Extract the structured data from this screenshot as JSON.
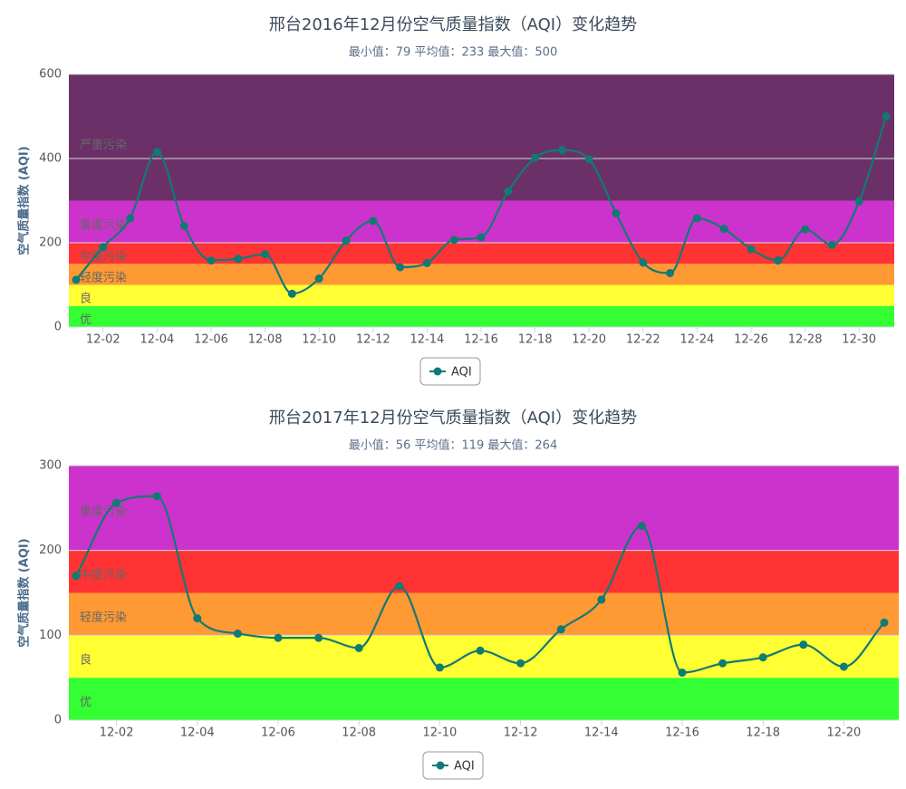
{
  "chart_data": [
    {
      "type": "line",
      "title": "邢台2016年12月份空气质量指数（AQI）变化趋势",
      "subtitle": "最小值：79 平均值：233 最大值：500",
      "ylabel": "空气质量指数 (AQI)",
      "xlabel": "",
      "ylim": [
        0,
        600
      ],
      "yticks": [
        "0",
        "200",
        "400",
        "600"
      ],
      "xtick_labels": [
        "12-02",
        "12-04",
        "12-06",
        "12-08",
        "12-10",
        "12-12",
        "12-14",
        "12-16",
        "12-18",
        "12-20",
        "12-22",
        "12-24",
        "12-26",
        "12-28",
        "12-30"
      ],
      "legend": {
        "label": "AQI",
        "position": "bottom-center"
      },
      "grid": true,
      "bands": [
        {
          "label": "优",
          "from": 0,
          "to": 50,
          "color": "#33ff33"
        },
        {
          "label": "良",
          "from": 50,
          "to": 100,
          "color": "#ffff33"
        },
        {
          "label": "轻度污染",
          "from": 100,
          "to": 150,
          "color": "#ff9933"
        },
        {
          "label": "中度污染",
          "from": 150,
          "to": 200,
          "color": "#ff3333"
        },
        {
          "label": "重度污染",
          "from": 200,
          "to": 300,
          "color": "#cc33cc"
        },
        {
          "label": "严重污染",
          "from": 300,
          "to": 600,
          "color": "#6b3068"
        }
      ],
      "series": [
        {
          "name": "AQI",
          "color": "#0f7b74",
          "x": [
            "12-01",
            "12-02",
            "12-03",
            "12-04",
            "12-05",
            "12-06",
            "12-07",
            "12-08",
            "12-09",
            "12-10",
            "12-11",
            "12-12",
            "12-13",
            "12-14",
            "12-15",
            "12-16",
            "12-17",
            "12-18",
            "12-19",
            "12-20",
            "12-21",
            "12-22",
            "12-23",
            "12-24",
            "12-25",
            "12-26",
            "12-27",
            "12-28",
            "12-29",
            "12-30",
            "12-31"
          ],
          "values": [
            112,
            190,
            258,
            415,
            240,
            158,
            162,
            173,
            79,
            115,
            205,
            252,
            142,
            152,
            207,
            213,
            322,
            402,
            420,
            398,
            270,
            153,
            128,
            258,
            233,
            185,
            158,
            232,
            195,
            298,
            500
          ]
        }
      ]
    },
    {
      "type": "line",
      "title": "邢台2017年12月份空气质量指数（AQI）变化趋势",
      "subtitle": "最小值：56 平均值：119 最大值：264",
      "ylabel": "空气质量指数 (AQI)",
      "xlabel": "",
      "ylim": [
        0,
        300
      ],
      "yticks": [
        "0",
        "100",
        "200",
        "300"
      ],
      "xtick_labels": [
        "12-02",
        "12-04",
        "12-06",
        "12-08",
        "12-10",
        "12-12",
        "12-14",
        "12-16",
        "12-18",
        "12-20"
      ],
      "legend": {
        "label": "AQI",
        "position": "bottom-center"
      },
      "grid": true,
      "bands": [
        {
          "label": "优",
          "from": 0,
          "to": 50,
          "color": "#33ff33"
        },
        {
          "label": "良",
          "from": 50,
          "to": 100,
          "color": "#ffff33"
        },
        {
          "label": "轻度污染",
          "from": 100,
          "to": 150,
          "color": "#ff9933"
        },
        {
          "label": "中度污染",
          "from": 150,
          "to": 200,
          "color": "#ff3333"
        },
        {
          "label": "重度污染",
          "from": 200,
          "to": 300,
          "color": "#cc33cc"
        }
      ],
      "series": [
        {
          "name": "AQI",
          "color": "#0f7b74",
          "x": [
            "12-01",
            "12-02",
            "12-03",
            "12-04",
            "12-05",
            "12-06",
            "12-07",
            "12-08",
            "12-09",
            "12-10",
            "12-11",
            "12-12",
            "12-13",
            "12-14",
            "12-15",
            "12-16",
            "12-17",
            "12-18",
            "12-19",
            "12-20",
            "12-21"
          ],
          "values": [
            170,
            256,
            264,
            120,
            102,
            97,
            97,
            85,
            158,
            62,
            82,
            67,
            107,
            142,
            229,
            56,
            67,
            74,
            89,
            63,
            115
          ]
        }
      ]
    }
  ]
}
